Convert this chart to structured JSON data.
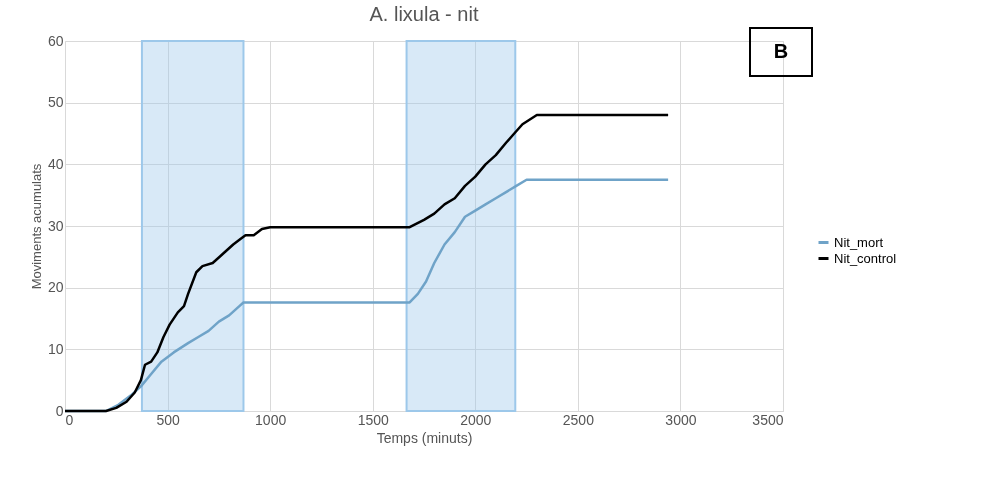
{
  "chart_data": {
    "type": "line",
    "title": "A. lixula - nit",
    "xlabel": "Temps (minuts)",
    "ylabel": "Moviments acumulats",
    "xlim": [
      0,
      3500
    ],
    "xticks": [
      0,
      500,
      1000,
      1500,
      2000,
      2500,
      3000,
      3500
    ],
    "ylim": [
      0,
      60
    ],
    "yticks": [
      0,
      10,
      20,
      30,
      40,
      50,
      60
    ],
    "grid": true,
    "legend": "right",
    "marker": "none",
    "line_style": "solid",
    "annotations": [
      "B"
    ],
    "bands": [
      {
        "axis": "x",
        "from": 375,
        "to": 870,
        "color": "#9dc8ea"
      },
      {
        "axis": "x",
        "from": 1665,
        "to": 2195,
        "color": "#9dc8ea"
      }
    ],
    "series": [
      {
        "name": "Nit_mort",
        "color": "#6fa3c8",
        "x": [
          0,
          200,
          260,
          320,
          370,
          420,
          470,
          530,
          600,
          650,
          700,
          750,
          800,
          850,
          870,
          1680,
          1720,
          1760,
          1800,
          1850,
          1900,
          1950,
          2000,
          2050,
          2100,
          2150,
          2200,
          2250,
          2940
        ],
        "values": [
          0,
          0,
          1,
          2.5,
          4,
          6,
          8,
          9.5,
          11,
          12,
          13,
          14.5,
          15.5,
          17,
          17.6,
          17.6,
          19,
          21,
          24,
          27,
          29,
          31.5,
          32.5,
          33.5,
          34.5,
          35.5,
          36.5,
          37.5,
          37.5
        ]
      },
      {
        "name": "Nit_control",
        "color": "#000000",
        "x": [
          0,
          200,
          250,
          300,
          340,
          370,
          390,
          420,
          450,
          480,
          510,
          550,
          580,
          600,
          640,
          670,
          720,
          770,
          820,
          860,
          880,
          920,
          960,
          1000,
          1680,
          1750,
          1800,
          1850,
          1900,
          1950,
          2000,
          2050,
          2100,
          2150,
          2190,
          2230,
          2300,
          2940
        ],
        "values": [
          0,
          0,
          0.5,
          1.5,
          3,
          5,
          7.5,
          8,
          9.5,
          12,
          14,
          16,
          17,
          19,
          22.5,
          23.5,
          24,
          25.5,
          27,
          28,
          28.5,
          28.5,
          29.5,
          29.8,
          29.8,
          31,
          32,
          33.5,
          34.5,
          36.5,
          38,
          40,
          41.5,
          43.5,
          45,
          46.5,
          48,
          48
        ]
      }
    ]
  }
}
